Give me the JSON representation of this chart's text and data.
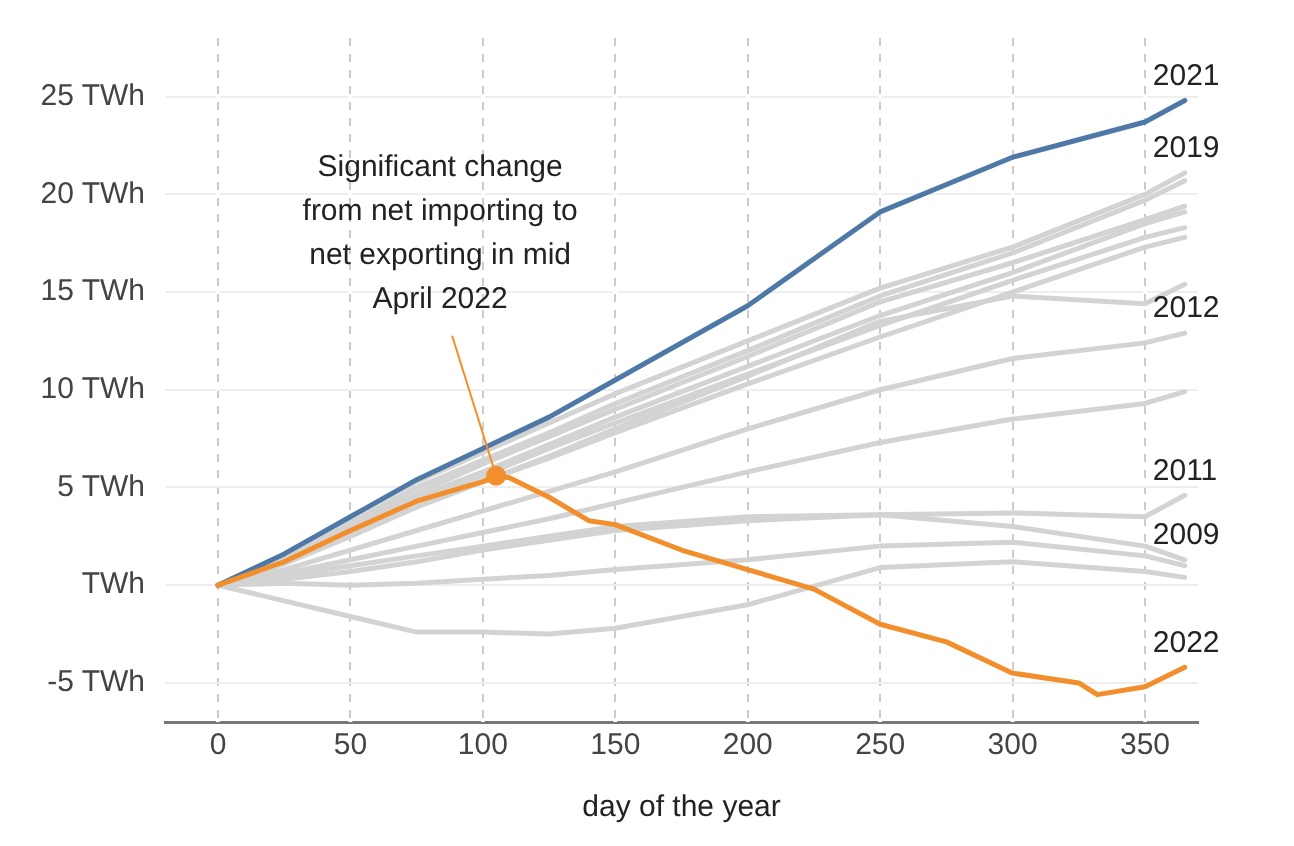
{
  "chart_data": {
    "type": "line",
    "xlabel": "day of the year",
    "x": [
      0,
      25,
      50,
      75,
      100,
      125,
      150,
      200,
      250,
      300,
      350,
      365
    ],
    "series": [
      {
        "color": "#d3d3d3",
        "values": [
          0,
          1.3,
          3.2,
          5,
          6.4,
          7.8,
          9.3,
          12,
          14.8,
          17,
          19.7,
          20.7
        ]
      },
      {
        "color": "#d3d3d3",
        "values": [
          0,
          1.3,
          3,
          4.7,
          6.2,
          7.6,
          9,
          11.7,
          14.5,
          16.5,
          18.7,
          19.4
        ]
      },
      {
        "color": "#d3d3d3",
        "values": [
          0,
          1.2,
          2.8,
          4.5,
          5.8,
          7.2,
          8.6,
          11.2,
          13.8,
          16,
          18.5,
          19.1
        ]
      },
      {
        "color": "#d3d3d3",
        "values": [
          0,
          1.2,
          2.8,
          4.3,
          5.6,
          7,
          8.3,
          10.8,
          13.3,
          15.6,
          17.8,
          18.3
        ]
      },
      {
        "color": "#d3d3d3",
        "values": [
          0,
          1.1,
          2.6,
          4,
          5.3,
          6.5,
          7.8,
          10.3,
          12.7,
          15,
          17.3,
          17.8
        ]
      },
      {
        "color": "#d3d3d3",
        "values": [
          0,
          1.1,
          2.5,
          4,
          5.3,
          6.6,
          8,
          10.7,
          13.5,
          14.8,
          14.4,
          15.4
        ]
      },
      {
        "color": "#d3d3d3",
        "values": [
          0,
          0.6,
          1.3,
          2,
          2.7,
          3.4,
          4.2,
          5.8,
          7.3,
          8.5,
          9.3,
          9.9
        ]
      },
      {
        "color": "#d3d3d3",
        "values": [
          0,
          0.1,
          0,
          0.1,
          0.3,
          0.5,
          0.8,
          1.3,
          2,
          2.2,
          1.5,
          1.0
        ]
      },
      {
        "color": "#d3d3d3",
        "values": [
          0,
          -0.8,
          -1.6,
          -2.4,
          -2.4,
          -2.5,
          -2.2,
          -1,
          0.9,
          1.2,
          0.7,
          0.4
        ]
      },
      {
        "name": "2019",
        "color": "#d3d3d3",
        "values": [
          0,
          1.5,
          3.5,
          5.3,
          6.8,
          8.3,
          9.8,
          12.5,
          15.2,
          17.3,
          20,
          21.1
        ]
      },
      {
        "name": "2012",
        "color": "#d3d3d3",
        "values": [
          0,
          0.8,
          1.8,
          2.8,
          3.8,
          4.8,
          5.8,
          8,
          10,
          11.6,
          12.4,
          12.9
        ]
      },
      {
        "name": "2011",
        "color": "#d3d3d3",
        "values": [
          0,
          0.3,
          0.7,
          1.2,
          1.8,
          2.3,
          2.8,
          3.3,
          3.6,
          3.7,
          3.5,
          4.6
        ]
      },
      {
        "name": "2009",
        "color": "#d3d3d3",
        "values": [
          0,
          0.5,
          1,
          1.5,
          2,
          2.5,
          3,
          3.5,
          3.6,
          3,
          2,
          1.3
        ]
      },
      {
        "name": "2021",
        "color": "#4e79a7",
        "values": [
          0,
          1.6,
          3.5,
          5.4,
          7,
          8.6,
          10.5,
          14.3,
          19.1,
          21.9,
          23.7,
          24.8
        ]
      },
      {
        "name": "2022",
        "color": "#f28e2b",
        "x": [
          0,
          25,
          50,
          75,
          100,
          105,
          110,
          125,
          140,
          150,
          175,
          200,
          225,
          250,
          275,
          300,
          325,
          332,
          350,
          365
        ],
        "values": [
          0,
          1.2,
          2.8,
          4.3,
          5.3,
          5.6,
          5.5,
          4.5,
          3.3,
          3.1,
          1.8,
          0.8,
          -0.2,
          -2,
          -2.9,
          -4.5,
          -5,
          -5.6,
          -5.2,
          -4.2
        ]
      }
    ],
    "xlim": [
      -20,
      370
    ],
    "xticks": [
      0,
      50,
      100,
      150,
      200,
      250,
      300,
      350
    ],
    "ylim": [
      -7,
      28
    ],
    "yticks": [
      {
        "value": -5,
        "label": "-5 TWh"
      },
      {
        "value": 0,
        "label": "TWh"
      },
      {
        "value": 5,
        "label": "5 TWh"
      },
      {
        "value": 10,
        "label": "10 TWh"
      },
      {
        "value": 15,
        "label": "15 TWh"
      },
      {
        "value": 20,
        "label": "20 TWh"
      },
      {
        "value": 25,
        "label": "25 TWh"
      }
    ],
    "grid": true,
    "legend": false,
    "marker": "none",
    "line_style": "solid",
    "annotations": [
      {
        "text": "Significant change\nfrom net importing to\nnet exporting in mid\nApril 2022",
        "x": 105,
        "y": 5.6
      }
    ]
  }
}
